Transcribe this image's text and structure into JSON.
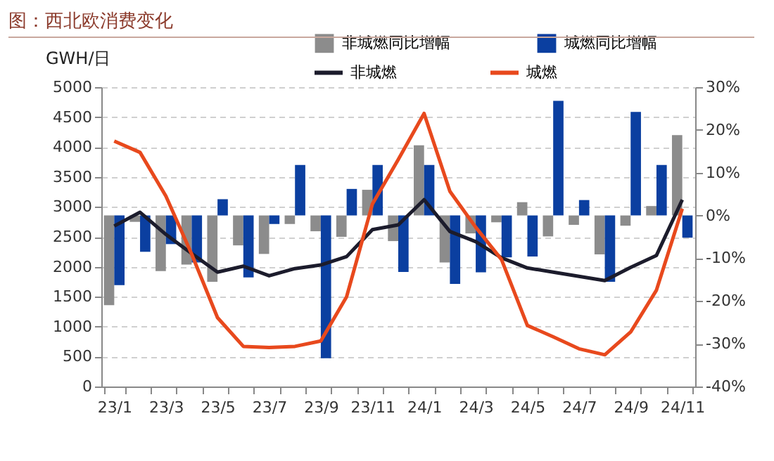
{
  "chart_data": {
    "type": "bar",
    "title": "图：西北欧消费变化",
    "ylabel": "GWH/日",
    "categories": [
      "23/1",
      null,
      "23/3",
      null,
      "23/5",
      null,
      "23/7",
      null,
      "23/9",
      null,
      "23/11",
      null,
      "24/1",
      null,
      "24/3",
      null,
      "24/5",
      null,
      "24/7",
      null,
      "24/9",
      null,
      "24/11"
    ],
    "series": [
      {
        "name": "非城燃同比增幅",
        "type": "bar",
        "axis": "y2",
        "color": "#8c8c8c",
        "values": [
          -21,
          -1.5,
          -13,
          -11.5,
          -15.5,
          -7,
          -9,
          -2,
          -3.7,
          -5,
          6,
          -6,
          16.4,
          -11,
          -4.2,
          -1.6,
          3.1,
          -4.9,
          -2.2,
          -9.1,
          -2.4,
          2.2,
          18.8
        ]
      },
      {
        "name": "城燃同比增幅",
        "type": "bar",
        "axis": "y2",
        "color": "#0b3fa0",
        "values": [
          -16.3,
          -8.5,
          -6.7,
          -11,
          3.8,
          -14.5,
          -2,
          11.8,
          -33.4,
          6.2,
          11.8,
          -13.2,
          11.8,
          -16,
          -13.3,
          -9.8,
          -9.6,
          26.8,
          3.6,
          -15.5,
          24.2,
          11.8,
          -5.2
        ]
      },
      {
        "name": "非城燃",
        "type": "line",
        "axis": "y",
        "color": "#1c1c2c",
        "values": [
          2680,
          2910,
          2540,
          2220,
          1910,
          2010,
          1850,
          1970,
          2030,
          2170,
          2620,
          2700,
          3120,
          2590,
          2420,
          2150,
          1980,
          1910,
          1840,
          1770,
          1990,
          2190,
          3120
        ]
      },
      {
        "name": "城燃",
        "type": "line",
        "axis": "y",
        "color": "#e8491d",
        "values": [
          4100,
          3910,
          3180,
          2210,
          1150,
          670,
          650,
          670,
          760,
          1500,
          3050,
          3790,
          4560,
          3260,
          2660,
          2120,
          1020,
          830,
          630,
          530,
          910,
          1610,
          2970
        ]
      }
    ],
    "ylim": [
      0,
      5000
    ],
    "yticks": [
      0,
      500,
      1000,
      1500,
      2000,
      2500,
      3000,
      3500,
      4000,
      4500,
      5000
    ],
    "y2lim": [
      -40,
      30
    ],
    "y2ticks": [
      {
        "value": -40,
        "label": "-40%"
      },
      {
        "value": -30,
        "label": "-30%"
      },
      {
        "value": -20,
        "label": "-20%"
      },
      {
        "value": -10,
        "label": "-10%"
      },
      {
        "value": 0,
        "label": "0%"
      },
      {
        "value": 10,
        "label": "10%"
      },
      {
        "value": 20,
        "label": "20%"
      },
      {
        "value": 30,
        "label": "30%"
      }
    ],
    "grid": "y",
    "legend": "top"
  }
}
